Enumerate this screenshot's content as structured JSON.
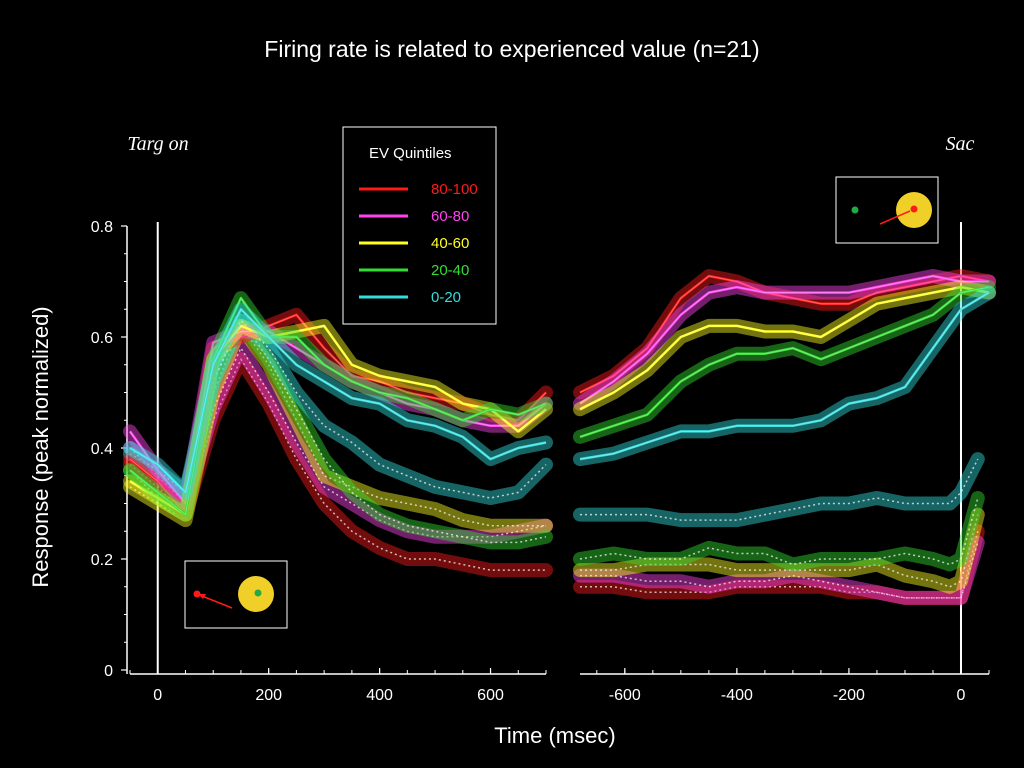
{
  "chart_data": {
    "type": "line",
    "title": "Firing rate is related to experienced value (n=21)",
    "ylabel": "Response (peak normalized)",
    "xlabel": "Time (msec)",
    "ylim": [
      0,
      0.8
    ],
    "yticks": [
      0,
      0.2,
      0.4,
      0.6,
      0.8
    ],
    "ytick_labels": [
      "0",
      "0.2",
      "0.4",
      "0.6",
      "0.8"
    ],
    "legend": {
      "title": "EV Quintiles",
      "placement": "top-center",
      "entries": [
        {
          "label": "80-100",
          "color": "#ff1a1a"
        },
        {
          "label": "60-80",
          "color": "#ff44ee"
        },
        {
          "label": "40-60",
          "color": "#ffff22"
        },
        {
          "label": "20-40",
          "color": "#33dd33"
        },
        {
          "label": "0-20",
          "color": "#33dddd"
        }
      ]
    },
    "panels": [
      {
        "name": "target-onset",
        "label": "Targ on",
        "xlim": [
          -50,
          700
        ],
        "xticks": [
          0,
          200,
          400,
          600
        ],
        "xtick_labels": [
          "0",
          "200",
          "400",
          "600"
        ],
        "event_time": 0,
        "series": [
          {
            "quintile": "80-100",
            "style": "solid",
            "color": "#ff1a1a",
            "x": [
              -50,
              0,
              50,
              100,
              150,
              200,
              250,
              300,
              350,
              400,
              450,
              500,
              550,
              600,
              650,
              700
            ],
            "y": [
              0.38,
              0.34,
              0.28,
              0.58,
              0.6,
              0.62,
              0.64,
              0.58,
              0.53,
              0.52,
              0.5,
              0.49,
              0.48,
              0.46,
              0.45,
              0.5
            ]
          },
          {
            "quintile": "60-80",
            "style": "solid",
            "color": "#ff44ee",
            "x": [
              -50,
              0,
              50,
              100,
              150,
              200,
              250,
              300,
              350,
              400,
              450,
              500,
              550,
              600,
              650,
              700
            ],
            "y": [
              0.43,
              0.36,
              0.3,
              0.59,
              0.61,
              0.61,
              0.58,
              0.55,
              0.52,
              0.5,
              0.48,
              0.47,
              0.45,
              0.44,
              0.44,
              0.48
            ]
          },
          {
            "quintile": "40-60",
            "style": "solid",
            "color": "#ffff22",
            "x": [
              -50,
              0,
              50,
              100,
              150,
              200,
              250,
              300,
              350,
              400,
              450,
              500,
              550,
              600,
              650,
              700
            ],
            "y": [
              0.34,
              0.31,
              0.28,
              0.56,
              0.62,
              0.6,
              0.61,
              0.62,
              0.55,
              0.53,
              0.52,
              0.51,
              0.48,
              0.47,
              0.43,
              0.47
            ]
          },
          {
            "quintile": "20-40",
            "style": "solid",
            "color": "#33dd33",
            "x": [
              -50,
              0,
              50,
              100,
              150,
              200,
              250,
              300,
              350,
              400,
              450,
              500,
              550,
              600,
              650,
              700
            ],
            "y": [
              0.36,
              0.32,
              0.28,
              0.56,
              0.67,
              0.6,
              0.6,
              0.55,
              0.52,
              0.5,
              0.49,
              0.47,
              0.45,
              0.47,
              0.46,
              0.48
            ]
          },
          {
            "quintile": "0-20",
            "style": "solid",
            "color": "#33dddd",
            "x": [
              -50,
              0,
              50,
              100,
              150,
              200,
              250,
              300,
              350,
              400,
              450,
              500,
              550,
              600,
              650,
              700
            ],
            "y": [
              0.4,
              0.37,
              0.32,
              0.55,
              0.65,
              0.6,
              0.55,
              0.52,
              0.49,
              0.48,
              0.45,
              0.44,
              0.42,
              0.38,
              0.4,
              0.41
            ]
          },
          {
            "quintile": "80-100",
            "style": "dotted",
            "color": "#ff1a1a",
            "x": [
              -50,
              0,
              50,
              100,
              150,
              200,
              250,
              300,
              350,
              400,
              450,
              500,
              550,
              600,
              650,
              700
            ],
            "y": [
              0.37,
              0.33,
              0.28,
              0.45,
              0.56,
              0.48,
              0.38,
              0.3,
              0.25,
              0.22,
              0.2,
              0.2,
              0.19,
              0.18,
              0.18,
              0.18
            ]
          },
          {
            "quintile": "60-80",
            "style": "dotted",
            "color": "#ff44ee",
            "x": [
              -50,
              0,
              50,
              100,
              150,
              200,
              250,
              300,
              350,
              400,
              450,
              500,
              550,
              600,
              650,
              700
            ],
            "y": [
              0.4,
              0.35,
              0.3,
              0.47,
              0.58,
              0.5,
              0.41,
              0.33,
              0.3,
              0.27,
              0.25,
              0.24,
              0.24,
              0.24,
              0.25,
              0.26
            ]
          },
          {
            "quintile": "40-60",
            "style": "dotted",
            "color": "#ffff22",
            "x": [
              -50,
              0,
              50,
              100,
              150,
              200,
              250,
              300,
              350,
              400,
              450,
              500,
              550,
              600,
              650,
              700
            ],
            "y": [
              0.33,
              0.3,
              0.27,
              0.5,
              0.62,
              0.55,
              0.45,
              0.35,
              0.33,
              0.31,
              0.3,
              0.29,
              0.27,
              0.26,
              0.26,
              0.26
            ]
          },
          {
            "quintile": "20-40",
            "style": "dotted",
            "color": "#33dd33",
            "x": [
              -50,
              0,
              50,
              100,
              150,
              200,
              250,
              300,
              350,
              400,
              450,
              500,
              550,
              600,
              650,
              700
            ],
            "y": [
              0.36,
              0.31,
              0.28,
              0.52,
              0.63,
              0.56,
              0.47,
              0.38,
              0.32,
              0.28,
              0.26,
              0.25,
              0.24,
              0.23,
              0.23,
              0.24
            ]
          },
          {
            "quintile": "0-20",
            "style": "dotted",
            "color": "#33dddd",
            "x": [
              -50,
              0,
              50,
              100,
              150,
              200,
              250,
              300,
              350,
              400,
              450,
              500,
              550,
              600,
              650,
              700
            ],
            "y": [
              0.39,
              0.36,
              0.32,
              0.52,
              0.63,
              0.58,
              0.5,
              0.44,
              0.41,
              0.37,
              0.35,
              0.33,
              0.32,
              0.31,
              0.32,
              0.37
            ]
          }
        ]
      },
      {
        "name": "saccade",
        "label": "Sac",
        "xlim": [
          -680,
          50
        ],
        "xticks": [
          -600,
          -400,
          -200,
          0
        ],
        "xtick_labels": [
          "-600",
          "-400",
          "-200",
          "0"
        ],
        "event_time": 0,
        "series": [
          {
            "quintile": "80-100",
            "style": "solid",
            "color": "#ff1a1a",
            "x": [
              -680,
              -620,
              -560,
              -500,
              -450,
              -400,
              -350,
              -300,
              -250,
              -200,
              -150,
              -100,
              -50,
              0,
              50
            ],
            "y": [
              0.5,
              0.53,
              0.58,
              0.67,
              0.71,
              0.7,
              0.68,
              0.67,
              0.66,
              0.66,
              0.68,
              0.69,
              0.7,
              0.71,
              0.7
            ]
          },
          {
            "quintile": "60-80",
            "style": "solid",
            "color": "#ff44ee",
            "x": [
              -680,
              -620,
              -560,
              -500,
              -450,
              -400,
              -350,
              -300,
              -250,
              -200,
              -150,
              -100,
              -50,
              0,
              50
            ],
            "y": [
              0.48,
              0.52,
              0.57,
              0.64,
              0.68,
              0.69,
              0.68,
              0.68,
              0.68,
              0.68,
              0.69,
              0.7,
              0.71,
              0.7,
              0.7
            ]
          },
          {
            "quintile": "40-60",
            "style": "solid",
            "color": "#ffff22",
            "x": [
              -680,
              -620,
              -560,
              -500,
              -450,
              -400,
              -350,
              -300,
              -250,
              -200,
              -150,
              -100,
              -50,
              0,
              50
            ],
            "y": [
              0.47,
              0.5,
              0.54,
              0.6,
              0.62,
              0.62,
              0.61,
              0.61,
              0.6,
              0.63,
              0.66,
              0.67,
              0.68,
              0.69,
              0.68
            ]
          },
          {
            "quintile": "20-40",
            "style": "solid",
            "color": "#33dd33",
            "x": [
              -680,
              -620,
              -560,
              -500,
              -450,
              -400,
              -350,
              -300,
              -250,
              -200,
              -150,
              -100,
              -50,
              0,
              50
            ],
            "y": [
              0.42,
              0.44,
              0.46,
              0.52,
              0.55,
              0.57,
              0.57,
              0.58,
              0.56,
              0.58,
              0.6,
              0.62,
              0.64,
              0.68,
              0.69
            ]
          },
          {
            "quintile": "0-20",
            "style": "solid",
            "color": "#33dddd",
            "x": [
              -680,
              -620,
              -560,
              -500,
              -450,
              -400,
              -350,
              -300,
              -250,
              -200,
              -150,
              -100,
              -50,
              0,
              50
            ],
            "y": [
              0.38,
              0.39,
              0.41,
              0.43,
              0.43,
              0.44,
              0.44,
              0.44,
              0.45,
              0.48,
              0.49,
              0.51,
              0.58,
              0.65,
              0.68
            ]
          },
          {
            "quintile": "80-100",
            "style": "dotted",
            "color": "#ff1a1a",
            "x": [
              -680,
              -620,
              -560,
              -500,
              -450,
              -400,
              -350,
              -300,
              -250,
              -200,
              -150,
              -100,
              -50,
              -20,
              0,
              30
            ],
            "y": [
              0.15,
              0.15,
              0.14,
              0.14,
              0.14,
              0.15,
              0.15,
              0.15,
              0.15,
              0.14,
              0.14,
              0.13,
              0.13,
              0.13,
              0.13,
              0.25
            ]
          },
          {
            "quintile": "60-80",
            "style": "dotted",
            "color": "#ff44ee",
            "x": [
              -680,
              -620,
              -560,
              -500,
              -450,
              -400,
              -350,
              -300,
              -250,
              -200,
              -150,
              -100,
              -50,
              -20,
              0,
              30
            ],
            "y": [
              0.17,
              0.17,
              0.16,
              0.16,
              0.15,
              0.16,
              0.16,
              0.17,
              0.16,
              0.15,
              0.14,
              0.13,
              0.13,
              0.13,
              0.13,
              0.23
            ]
          },
          {
            "quintile": "40-60",
            "style": "dotted",
            "color": "#ffff22",
            "x": [
              -680,
              -620,
              -560,
              -500,
              -450,
              -400,
              -350,
              -300,
              -250,
              -200,
              -150,
              -100,
              -50,
              -20,
              0,
              30
            ],
            "y": [
              0.18,
              0.18,
              0.19,
              0.19,
              0.19,
              0.18,
              0.18,
              0.18,
              0.18,
              0.18,
              0.19,
              0.17,
              0.16,
              0.15,
              0.16,
              0.28
            ]
          },
          {
            "quintile": "20-40",
            "style": "dotted",
            "color": "#33dd33",
            "x": [
              -680,
              -620,
              -560,
              -500,
              -450,
              -400,
              -350,
              -300,
              -250,
              -200,
              -150,
              -100,
              -50,
              -20,
              0,
              30
            ],
            "y": [
              0.2,
              0.21,
              0.2,
              0.2,
              0.22,
              0.21,
              0.21,
              0.19,
              0.2,
              0.2,
              0.2,
              0.21,
              0.2,
              0.19,
              0.2,
              0.31
            ]
          },
          {
            "quintile": "0-20",
            "style": "dotted",
            "color": "#33dddd",
            "x": [
              -680,
              -620,
              -560,
              -500,
              -450,
              -400,
              -350,
              -300,
              -250,
              -200,
              -150,
              -100,
              -50,
              -20,
              0,
              30
            ],
            "y": [
              0.28,
              0.28,
              0.28,
              0.27,
              0.27,
              0.27,
              0.28,
              0.29,
              0.3,
              0.3,
              0.31,
              0.3,
              0.3,
              0.3,
              0.32,
              0.38
            ]
          }
        ]
      }
    ],
    "insets": [
      {
        "panel": "target-onset",
        "fixation_color": "#ff1a1a",
        "target_color": "#f0d028",
        "target_dot_color": "#22aa44",
        "arrow_color": "#ff1a1a"
      },
      {
        "panel": "saccade",
        "fixation_color": "#22aa44",
        "target_color": "#f0d028",
        "target_dot_color": "#ff1a1a",
        "arrow_color": "#ff1a1a"
      }
    ]
  }
}
